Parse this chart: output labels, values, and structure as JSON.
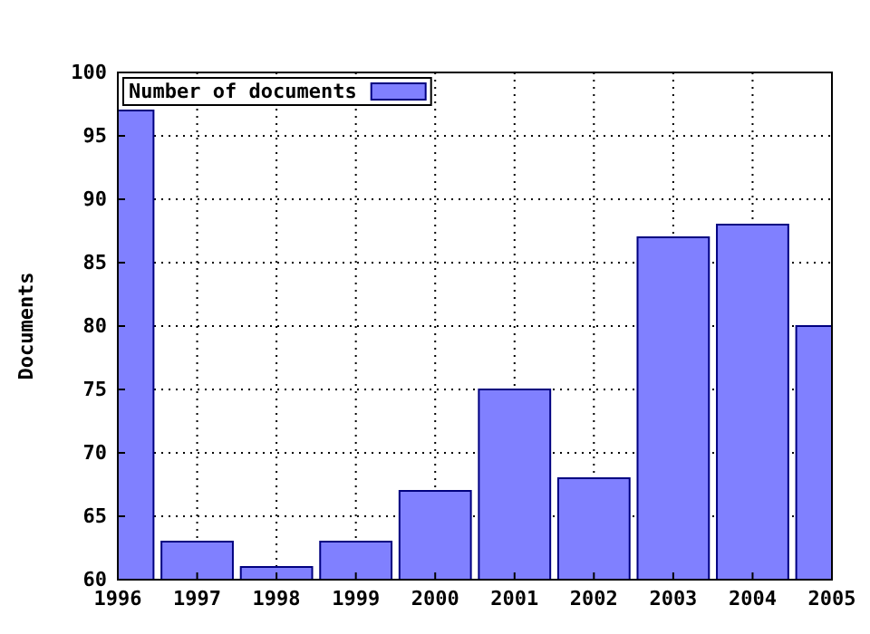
{
  "chart_data": {
    "type": "bar",
    "ylabel": "Documents",
    "x": [
      1996,
      1997,
      1998,
      1999,
      2000,
      2001,
      2002,
      2003,
      2004,
      2005
    ],
    "series": [
      {
        "name": "Number of documents",
        "color": "#8080ff",
        "values": [
          97,
          63,
          61,
          63,
          67,
          75,
          68,
          87,
          88,
          80
        ]
      }
    ],
    "xlim": [
      1996,
      2005
    ],
    "xticks": [
      1996,
      1997,
      1998,
      1999,
      2000,
      2001,
      2002,
      2003,
      2004,
      2005
    ],
    "ylim": [
      60,
      100
    ],
    "yticks": [
      60,
      65,
      70,
      75,
      80,
      85,
      90,
      95,
      100
    ],
    "grid": true,
    "legend": "top left"
  }
}
